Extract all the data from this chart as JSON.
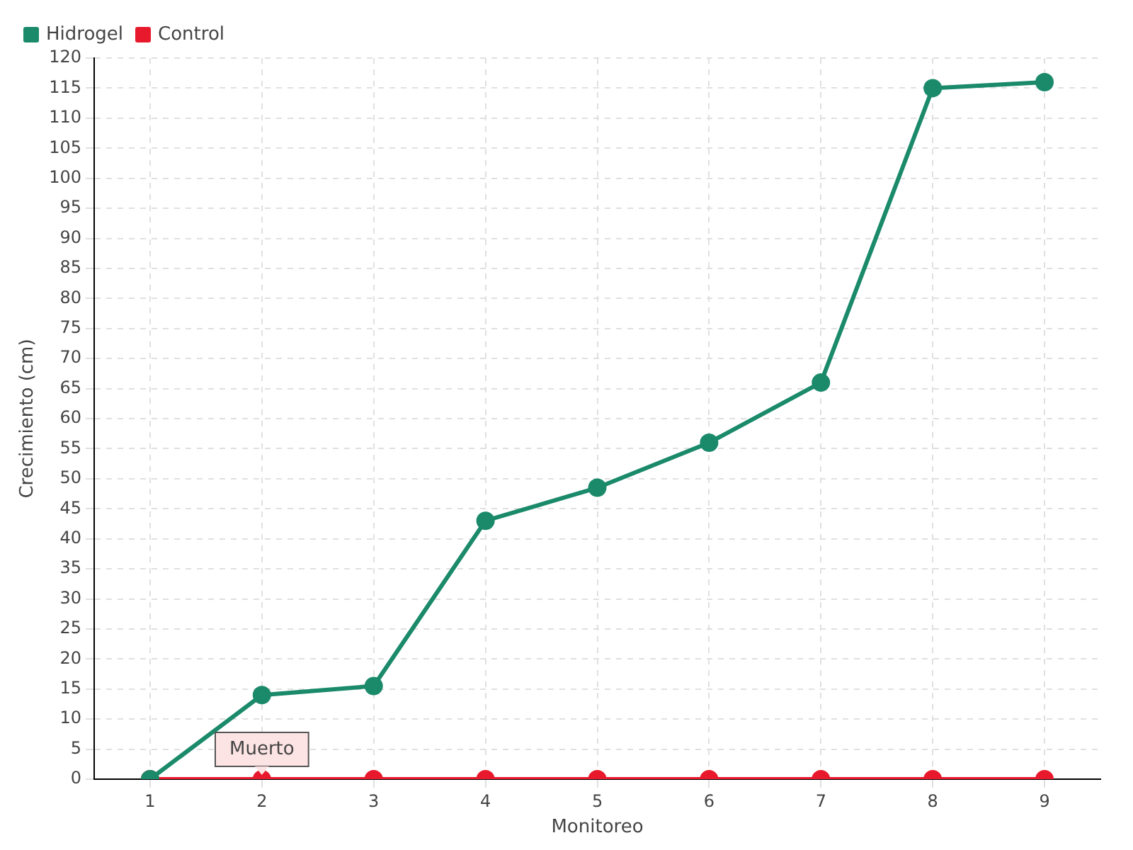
{
  "chart_data": {
    "type": "line",
    "xlabel": "Monitoreo",
    "ylabel": "Crecimiento (cm)",
    "categories": [
      "1",
      "2",
      "3",
      "4",
      "5",
      "6",
      "7",
      "8",
      "9"
    ],
    "series": [
      {
        "name": "Hidrogel",
        "color": "#1a8a6a",
        "values": [
          0,
          14,
          15.5,
          43,
          48.5,
          56,
          66,
          115,
          116
        ]
      },
      {
        "name": "Control",
        "color": "#e8192c",
        "values": [
          0,
          0,
          0,
          0,
          0,
          0,
          0,
          0,
          0
        ]
      }
    ],
    "ylim": [
      0,
      120
    ],
    "yticks": [
      0,
      5,
      10,
      15,
      20,
      25,
      30,
      35,
      40,
      45,
      50,
      55,
      60,
      65,
      70,
      75,
      80,
      85,
      90,
      95,
      100,
      105,
      110,
      115,
      120
    ],
    "grid": true,
    "legend": "top left",
    "marker": "circle",
    "line_style": "solid",
    "annotations": [
      {
        "text": "Muerto",
        "x": "2",
        "y": 0
      }
    ]
  }
}
